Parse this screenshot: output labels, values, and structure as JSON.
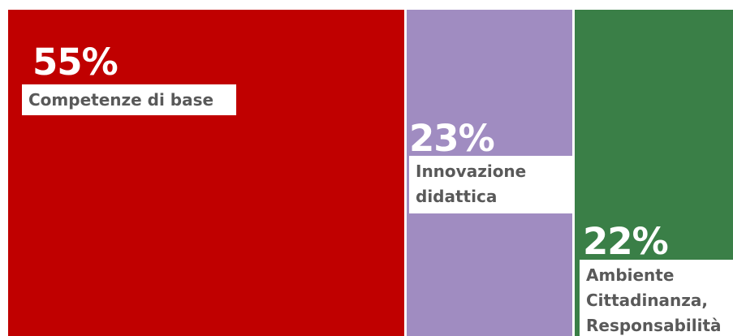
{
  "chart_data": {
    "type": "treemap",
    "title": "",
    "items": [
      {
        "value": 55,
        "percent_label": "55%",
        "label": "Competenze di base",
        "color": "#c00000"
      },
      {
        "value": 23,
        "percent_label": "23%",
        "label": "Innovazione\ndidattica",
        "color": "#a08cc1"
      },
      {
        "value": 22,
        "percent_label": "22%",
        "label": "Ambiente\nCittadinanza,\nResponsabilità",
        "color": "#3a7f47"
      }
    ]
  }
}
